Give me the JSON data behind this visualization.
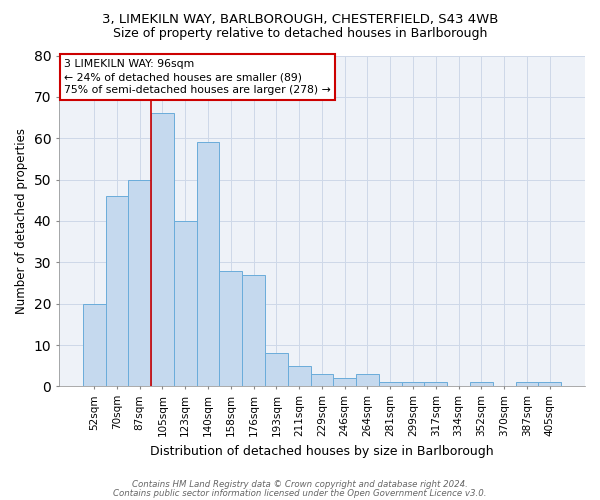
{
  "title1": "3, LIMEKILN WAY, BARLBOROUGH, CHESTERFIELD, S43 4WB",
  "title2": "Size of property relative to detached houses in Barlborough",
  "xlabel": "Distribution of detached houses by size in Barlborough",
  "ylabel": "Number of detached properties",
  "categories": [
    "52sqm",
    "70sqm",
    "87sqm",
    "105sqm",
    "123sqm",
    "140sqm",
    "158sqm",
    "176sqm",
    "193sqm",
    "211sqm",
    "229sqm",
    "246sqm",
    "264sqm",
    "281sqm",
    "299sqm",
    "317sqm",
    "334sqm",
    "352sqm",
    "370sqm",
    "387sqm",
    "405sqm"
  ],
  "values": [
    20,
    46,
    50,
    66,
    40,
    59,
    28,
    27,
    8,
    5,
    3,
    2,
    3,
    1,
    1,
    1,
    0,
    1,
    0,
    1,
    1
  ],
  "bar_color": "#c5d9ee",
  "bar_edge_color": "#6aacda",
  "red_line_x": 2.5,
  "annotation_text": "3 LIMEKILN WAY: 96sqm\n← 24% of detached houses are smaller (89)\n75% of semi-detached houses are larger (278) →",
  "annotation_box_color": "#ffffff",
  "annotation_box_edge": "#cc0000",
  "red_line_color": "#cc0000",
  "footer1": "Contains HM Land Registry data © Crown copyright and database right 2024.",
  "footer2": "Contains public sector information licensed under the Open Government Licence v3.0.",
  "ylim": [
    0,
    80
  ],
  "yticks": [
    0,
    10,
    20,
    30,
    40,
    50,
    60,
    70,
    80
  ],
  "grid_color": "#cdd8e8",
  "bg_color": "#eef2f8",
  "title1_fontsize": 9.5,
  "title2_fontsize": 9.0,
  "xlabel_fontsize": 9.0,
  "ylabel_fontsize": 8.5,
  "tick_fontsize": 7.5
}
